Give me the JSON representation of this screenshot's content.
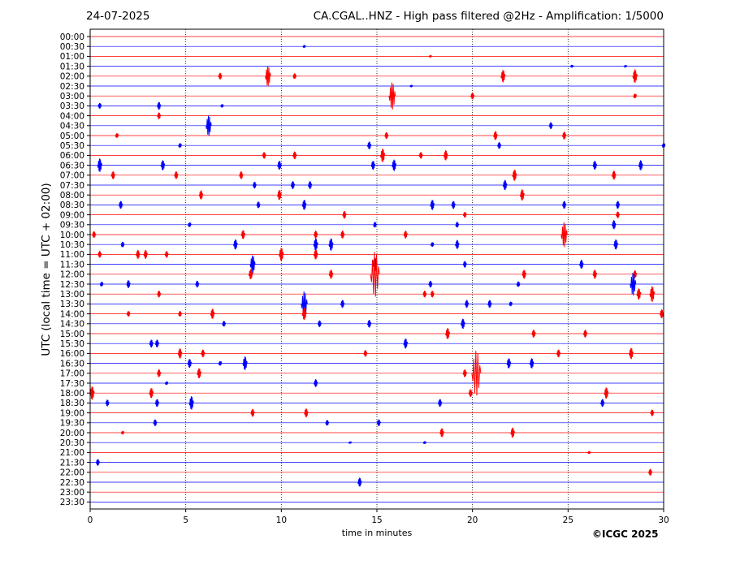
{
  "header": {
    "date": "24-07-2025",
    "title": "CA.CGAL..HNZ - High pass filtered @2Hz - Amplification: 1/5000"
  },
  "chart_data": {
    "type": "line",
    "xlabel": "time in minutes",
    "ylabel": "UTC (local time = UTC + 02:00)",
    "xlim": [
      0,
      30
    ],
    "xticks": [
      0,
      5,
      10,
      15,
      20,
      25,
      30
    ],
    "grid": "vertical dotted at 5-minute intervals",
    "colors": {
      "red": "#ff0000",
      "blue": "#0000ff"
    },
    "rows": [
      "00:00",
      "00:30",
      "01:00",
      "01:30",
      "02:00",
      "02:30",
      "03:00",
      "03:30",
      "04:00",
      "04:30",
      "05:00",
      "05:30",
      "06:00",
      "06:30",
      "07:00",
      "07:30",
      "08:00",
      "08:30",
      "09:00",
      "09:30",
      "10:00",
      "10:30",
      "11:00",
      "11:30",
      "12:00",
      "12:30",
      "13:00",
      "13:30",
      "14:00",
      "14:30",
      "15:00",
      "15:30",
      "16:00",
      "16:30",
      "17:00",
      "17:30",
      "18:00",
      "18:30",
      "19:00",
      "19:30",
      "20:00",
      "20:30",
      "21:00",
      "21:30",
      "22:00",
      "22:30",
      "23:00",
      "23:30"
    ],
    "events": [
      {
        "row": "00:30",
        "t": 11.2,
        "amp": 0.12
      },
      {
        "row": "01:00",
        "t": 17.8,
        "amp": 0.1
      },
      {
        "row": "01:30",
        "t": 25.2,
        "amp": 0.12
      },
      {
        "row": "01:30",
        "t": 28.0,
        "amp": 0.1
      },
      {
        "row": "02:00",
        "t": 6.8,
        "amp": 0.3
      },
      {
        "row": "02:00",
        "t": 9.3,
        "amp": 0.9
      },
      {
        "row": "02:00",
        "t": 10.7,
        "amp": 0.25
      },
      {
        "row": "02:00",
        "t": 21.6,
        "amp": 0.55
      },
      {
        "row": "02:00",
        "t": 28.5,
        "amp": 0.6
      },
      {
        "row": "02:30",
        "t": 16.8,
        "amp": 0.1
      },
      {
        "row": "03:00",
        "t": 15.8,
        "amp": 1.2
      },
      {
        "row": "03:00",
        "t": 20.0,
        "amp": 0.3
      },
      {
        "row": "03:00",
        "t": 28.5,
        "amp": 0.2
      },
      {
        "row": "03:30",
        "t": 0.5,
        "amp": 0.25
      },
      {
        "row": "03:30",
        "t": 3.6,
        "amp": 0.35
      },
      {
        "row": "03:30",
        "t": 6.9,
        "amp": 0.15
      },
      {
        "row": "04:00",
        "t": 3.6,
        "amp": 0.3
      },
      {
        "row": "04:30",
        "t": 6.2,
        "amp": 0.9
      },
      {
        "row": "04:30",
        "t": 24.1,
        "amp": 0.3
      },
      {
        "row": "05:00",
        "t": 1.4,
        "amp": 0.2
      },
      {
        "row": "05:00",
        "t": 15.5,
        "amp": 0.3
      },
      {
        "row": "05:00",
        "t": 21.2,
        "amp": 0.4
      },
      {
        "row": "05:00",
        "t": 24.8,
        "amp": 0.35
      },
      {
        "row": "05:30",
        "t": 4.7,
        "amp": 0.2
      },
      {
        "row": "05:30",
        "t": 14.6,
        "amp": 0.35
      },
      {
        "row": "05:30",
        "t": 21.4,
        "amp": 0.3
      },
      {
        "row": "05:30",
        "t": 30.0,
        "amp": 0.2
      },
      {
        "row": "06:00",
        "t": 9.1,
        "amp": 0.3
      },
      {
        "row": "06:00",
        "t": 10.7,
        "amp": 0.35
      },
      {
        "row": "06:00",
        "t": 15.3,
        "amp": 0.6
      },
      {
        "row": "06:00",
        "t": 17.3,
        "amp": 0.3
      },
      {
        "row": "06:00",
        "t": 18.6,
        "amp": 0.45
      },
      {
        "row": "06:30",
        "t": 0.5,
        "amp": 0.6
      },
      {
        "row": "06:30",
        "t": 3.8,
        "amp": 0.45
      },
      {
        "row": "06:30",
        "t": 9.9,
        "amp": 0.4
      },
      {
        "row": "06:30",
        "t": 14.8,
        "amp": 0.4
      },
      {
        "row": "06:30",
        "t": 15.9,
        "amp": 0.5
      },
      {
        "row": "06:30",
        "t": 26.4,
        "amp": 0.4
      },
      {
        "row": "06:30",
        "t": 28.8,
        "amp": 0.45
      },
      {
        "row": "07:00",
        "t": 1.2,
        "amp": 0.35
      },
      {
        "row": "07:00",
        "t": 4.5,
        "amp": 0.35
      },
      {
        "row": "07:00",
        "t": 7.9,
        "amp": 0.35
      },
      {
        "row": "07:00",
        "t": 22.2,
        "amp": 0.5
      },
      {
        "row": "07:00",
        "t": 27.4,
        "amp": 0.4
      },
      {
        "row": "07:30",
        "t": 8.6,
        "amp": 0.3
      },
      {
        "row": "07:30",
        "t": 10.6,
        "amp": 0.35
      },
      {
        "row": "07:30",
        "t": 11.5,
        "amp": 0.35
      },
      {
        "row": "07:30",
        "t": 21.7,
        "amp": 0.45
      },
      {
        "row": "08:00",
        "t": 5.8,
        "amp": 0.4
      },
      {
        "row": "08:00",
        "t": 9.9,
        "amp": 0.45
      },
      {
        "row": "08:00",
        "t": 22.6,
        "amp": 0.5
      },
      {
        "row": "08:30",
        "t": 1.6,
        "amp": 0.35
      },
      {
        "row": "08:30",
        "t": 8.8,
        "amp": 0.3
      },
      {
        "row": "08:30",
        "t": 11.2,
        "amp": 0.45
      },
      {
        "row": "08:30",
        "t": 17.9,
        "amp": 0.45
      },
      {
        "row": "08:30",
        "t": 19.0,
        "amp": 0.35
      },
      {
        "row": "08:30",
        "t": 24.8,
        "amp": 0.35
      },
      {
        "row": "08:30",
        "t": 27.6,
        "amp": 0.35
      },
      {
        "row": "09:00",
        "t": 13.3,
        "amp": 0.35
      },
      {
        "row": "09:00",
        "t": 19.6,
        "amp": 0.25
      },
      {
        "row": "09:00",
        "t": 27.6,
        "amp": 0.3
      },
      {
        "row": "09:30",
        "t": 5.2,
        "amp": 0.2
      },
      {
        "row": "09:30",
        "t": 14.9,
        "amp": 0.25
      },
      {
        "row": "09:30",
        "t": 19.2,
        "amp": 0.25
      },
      {
        "row": "09:30",
        "t": 27.4,
        "amp": 0.4
      },
      {
        "row": "10:00",
        "t": 0.2,
        "amp": 0.3
      },
      {
        "row": "10:00",
        "t": 8.0,
        "amp": 0.4
      },
      {
        "row": "10:00",
        "t": 11.8,
        "amp": 0.35
      },
      {
        "row": "10:00",
        "t": 13.2,
        "amp": 0.35
      },
      {
        "row": "10:00",
        "t": 16.5,
        "amp": 0.35
      },
      {
        "row": "10:00",
        "t": 24.8,
        "amp": 1.1
      },
      {
        "row": "10:30",
        "t": 1.7,
        "amp": 0.25
      },
      {
        "row": "10:30",
        "t": 7.6,
        "amp": 0.45
      },
      {
        "row": "10:30",
        "t": 11.8,
        "amp": 0.55
      },
      {
        "row": "10:30",
        "t": 12.6,
        "amp": 0.55
      },
      {
        "row": "10:30",
        "t": 17.9,
        "amp": 0.2
      },
      {
        "row": "10:30",
        "t": 19.2,
        "amp": 0.4
      },
      {
        "row": "10:30",
        "t": 27.5,
        "amp": 0.45
      },
      {
        "row": "11:00",
        "t": 0.5,
        "amp": 0.3
      },
      {
        "row": "11:00",
        "t": 2.5,
        "amp": 0.4
      },
      {
        "row": "11:00",
        "t": 2.9,
        "amp": 0.4
      },
      {
        "row": "11:00",
        "t": 4.0,
        "amp": 0.3
      },
      {
        "row": "11:00",
        "t": 10.0,
        "amp": 0.6
      },
      {
        "row": "11:00",
        "t": 11.8,
        "amp": 0.45
      },
      {
        "row": "11:30",
        "t": 8.5,
        "amp": 0.8
      },
      {
        "row": "11:30",
        "t": 14.9,
        "amp": 0.6
      },
      {
        "row": "11:30",
        "t": 19.6,
        "amp": 0.3
      },
      {
        "row": "11:30",
        "t": 25.7,
        "amp": 0.4
      },
      {
        "row": "12:00",
        "t": 8.4,
        "amp": 0.45
      },
      {
        "row": "12:00",
        "t": 12.6,
        "amp": 0.4
      },
      {
        "row": "12:00",
        "t": 14.9,
        "amp": 2.0
      },
      {
        "row": "12:00",
        "t": 22.7,
        "amp": 0.4
      },
      {
        "row": "12:00",
        "t": 26.4,
        "amp": 0.4
      },
      {
        "row": "12:00",
        "t": 28.5,
        "amp": 0.35
      },
      {
        "row": "12:30",
        "t": 0.6,
        "amp": 0.2
      },
      {
        "row": "12:30",
        "t": 2.0,
        "amp": 0.35
      },
      {
        "row": "12:30",
        "t": 5.6,
        "amp": 0.3
      },
      {
        "row": "12:30",
        "t": 17.8,
        "amp": 0.3
      },
      {
        "row": "12:30",
        "t": 22.4,
        "amp": 0.25
      },
      {
        "row": "12:30",
        "t": 28.4,
        "amp": 1.0
      },
      {
        "row": "13:00",
        "t": 3.6,
        "amp": 0.3
      },
      {
        "row": "13:00",
        "t": 17.5,
        "amp": 0.3
      },
      {
        "row": "13:00",
        "t": 17.9,
        "amp": 0.3
      },
      {
        "row": "13:00",
        "t": 28.7,
        "amp": 0.5
      },
      {
        "row": "13:00",
        "t": 29.4,
        "amp": 0.7
      },
      {
        "row": "13:30",
        "t": 11.2,
        "amp": 1.1
      },
      {
        "row": "13:30",
        "t": 13.2,
        "amp": 0.35
      },
      {
        "row": "13:30",
        "t": 19.7,
        "amp": 0.35
      },
      {
        "row": "13:30",
        "t": 20.9,
        "amp": 0.35
      },
      {
        "row": "13:30",
        "t": 22.0,
        "amp": 0.2
      },
      {
        "row": "14:00",
        "t": 2.0,
        "amp": 0.25
      },
      {
        "row": "14:00",
        "t": 4.7,
        "amp": 0.25
      },
      {
        "row": "14:00",
        "t": 6.4,
        "amp": 0.45
      },
      {
        "row": "14:00",
        "t": 11.2,
        "amp": 0.55
      },
      {
        "row": "14:00",
        "t": 29.9,
        "amp": 0.4
      },
      {
        "row": "14:30",
        "t": 7.0,
        "amp": 0.25
      },
      {
        "row": "14:30",
        "t": 12.0,
        "amp": 0.3
      },
      {
        "row": "14:30",
        "t": 14.6,
        "amp": 0.35
      },
      {
        "row": "14:30",
        "t": 19.5,
        "amp": 0.45
      },
      {
        "row": "15:00",
        "t": 18.7,
        "amp": 0.5
      },
      {
        "row": "15:00",
        "t": 23.2,
        "amp": 0.35
      },
      {
        "row": "15:00",
        "t": 25.9,
        "amp": 0.35
      },
      {
        "row": "15:30",
        "t": 3.2,
        "amp": 0.35
      },
      {
        "row": "15:30",
        "t": 3.5,
        "amp": 0.35
      },
      {
        "row": "15:30",
        "t": 16.5,
        "amp": 0.45
      },
      {
        "row": "16:00",
        "t": 4.7,
        "amp": 0.45
      },
      {
        "row": "16:00",
        "t": 5.9,
        "amp": 0.35
      },
      {
        "row": "16:00",
        "t": 14.4,
        "amp": 0.3
      },
      {
        "row": "16:00",
        "t": 24.5,
        "amp": 0.35
      },
      {
        "row": "16:00",
        "t": 28.3,
        "amp": 0.5
      },
      {
        "row": "16:30",
        "t": 5.2,
        "amp": 0.4
      },
      {
        "row": "16:30",
        "t": 6.8,
        "amp": 0.2
      },
      {
        "row": "16:30",
        "t": 8.1,
        "amp": 0.6
      },
      {
        "row": "16:30",
        "t": 21.9,
        "amp": 0.45
      },
      {
        "row": "16:30",
        "t": 23.1,
        "amp": 0.45
      },
      {
        "row": "17:00",
        "t": 3.6,
        "amp": 0.35
      },
      {
        "row": "17:00",
        "t": 5.7,
        "amp": 0.45
      },
      {
        "row": "17:00",
        "t": 19.6,
        "amp": 0.35
      },
      {
        "row": "17:00",
        "t": 20.2,
        "amp": 2.0
      },
      {
        "row": "17:30",
        "t": 4.0,
        "amp": 0.15
      },
      {
        "row": "17:30",
        "t": 11.8,
        "amp": 0.35
      },
      {
        "row": "18:00",
        "t": 0.1,
        "amp": 0.6
      },
      {
        "row": "18:00",
        "t": 3.2,
        "amp": 0.45
      },
      {
        "row": "18:00",
        "t": 19.9,
        "amp": 0.35
      },
      {
        "row": "18:00",
        "t": 27.0,
        "amp": 0.5
      },
      {
        "row": "18:30",
        "t": 0.9,
        "amp": 0.3
      },
      {
        "row": "18:30",
        "t": 3.5,
        "amp": 0.35
      },
      {
        "row": "18:30",
        "t": 5.3,
        "amp": 0.6
      },
      {
        "row": "18:30",
        "t": 18.3,
        "amp": 0.35
      },
      {
        "row": "18:30",
        "t": 26.8,
        "amp": 0.35
      },
      {
        "row": "19:00",
        "t": 8.5,
        "amp": 0.35
      },
      {
        "row": "19:00",
        "t": 11.3,
        "amp": 0.4
      },
      {
        "row": "19:00",
        "t": 29.4,
        "amp": 0.3
      },
      {
        "row": "19:30",
        "t": 3.4,
        "amp": 0.3
      },
      {
        "row": "19:30",
        "t": 12.4,
        "amp": 0.25
      },
      {
        "row": "19:30",
        "t": 15.1,
        "amp": 0.3
      },
      {
        "row": "20:00",
        "t": 1.7,
        "amp": 0.15
      },
      {
        "row": "20:00",
        "t": 18.4,
        "amp": 0.4
      },
      {
        "row": "20:00",
        "t": 22.1,
        "amp": 0.45
      },
      {
        "row": "20:30",
        "t": 13.6,
        "amp": 0.1
      },
      {
        "row": "20:30",
        "t": 17.5,
        "amp": 0.12
      },
      {
        "row": "21:00",
        "t": 26.1,
        "amp": 0.12
      },
      {
        "row": "21:30",
        "t": 0.4,
        "amp": 0.3
      },
      {
        "row": "22:00",
        "t": 29.3,
        "amp": 0.3
      },
      {
        "row": "22:30",
        "t": 14.1,
        "amp": 0.4
      }
    ]
  },
  "footer": {
    "copyright": "©ICGC 2025"
  }
}
